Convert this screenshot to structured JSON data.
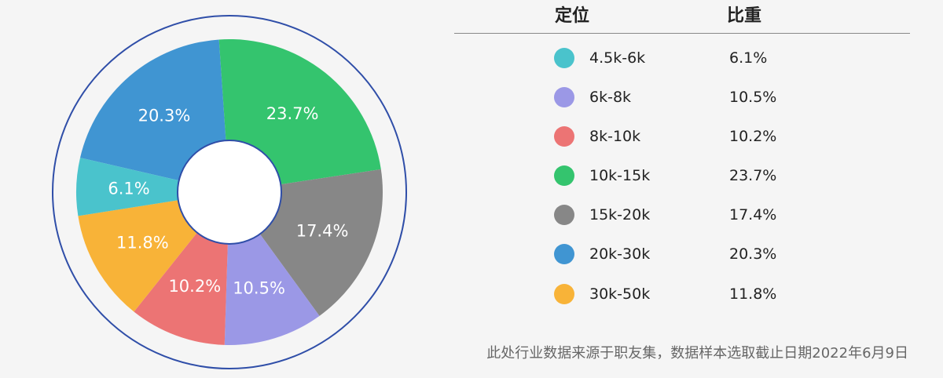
{
  "chart_data": {
    "type": "pie",
    "legend_headers": {
      "range": "定位",
      "share": "比重"
    },
    "slices": [
      {
        "label": "4.5k-6k",
        "value": 6.1,
        "display": "6.1%",
        "color": "#4ac3cc"
      },
      {
        "label": "6k-8k",
        "value": 10.5,
        "display": "10.5%",
        "color": "#9b98e6"
      },
      {
        "label": "8k-10k",
        "value": 10.2,
        "display": "10.2%",
        "color": "#ec7474"
      },
      {
        "label": "10k-15k",
        "value": 23.7,
        "display": "23.7%",
        "color": "#34c46e"
      },
      {
        "label": "15k-20k",
        "value": 17.4,
        "display": "17.4%",
        "color": "#878787"
      },
      {
        "label": "20k-30k",
        "value": 20.3,
        "display": "20.3%",
        "color": "#4095d2"
      },
      {
        "label": "30k-50k",
        "value": 11.8,
        "display": "11.8%",
        "color": "#f8b338"
      }
    ],
    "clockwise_order_from_top": [
      "20k-30k",
      "10k-15k",
      "15k-20k",
      "6k-8k",
      "8k-10k",
      "30k-50k",
      "4.5k-6k"
    ],
    "legend_placement": "right",
    "donut": true
  },
  "footnote": "此处行业数据来源于职友集，数据样本选取截止日期2022年6月9日"
}
